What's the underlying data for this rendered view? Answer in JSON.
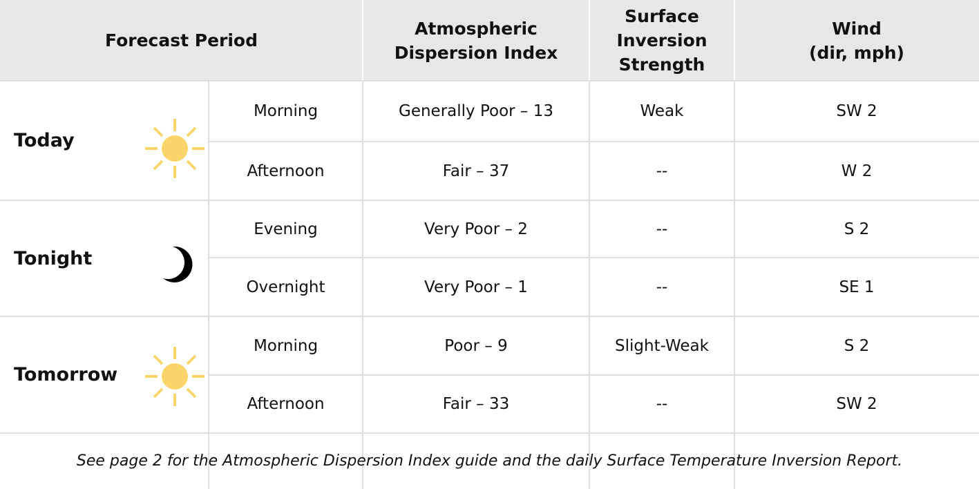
{
  "header": {
    "columns": [
      [
        "Forecast Period"
      ],
      [
        "Atmospheric",
        "Dispersion Index"
      ],
      [
        "Surface Inversion",
        "Strength"
      ],
      [
        "Wind",
        "(dir, mph)"
      ]
    ]
  },
  "groups": [
    {
      "label": "Today",
      "periods": [
        {
          "period": "Morning",
          "dispersion": "Generally Poor – 13",
          "inversion": "Weak",
          "wind": "SW 2"
        },
        {
          "period": "Afternoon",
          "dispersion": "Fair – 37",
          "inversion": "--",
          "wind": "W 2"
        }
      ]
    },
    {
      "label": "Tonight",
      "periods": [
        {
          "period": "Evening",
          "dispersion": "Very Poor – 2",
          "inversion": "--",
          "wind": "S 2"
        },
        {
          "period": "Overnight",
          "dispersion": "Very Poor – 1",
          "inversion": "--",
          "wind": "SE 1"
        }
      ]
    },
    {
      "label": "Tomorrow",
      "periods": [
        {
          "period": "Morning",
          "dispersion": "Poor – 9",
          "inversion": "Slight-Weak",
          "wind": "S 2"
        },
        {
          "period": "Afternoon",
          "dispersion": "Fair – 33",
          "inversion": "--",
          "wind": "SW 2"
        }
      ]
    }
  ],
  "footer": "See page 2 for the Atmospheric Dispersion Index guide and the daily Surface Temperature Inversion Report."
}
